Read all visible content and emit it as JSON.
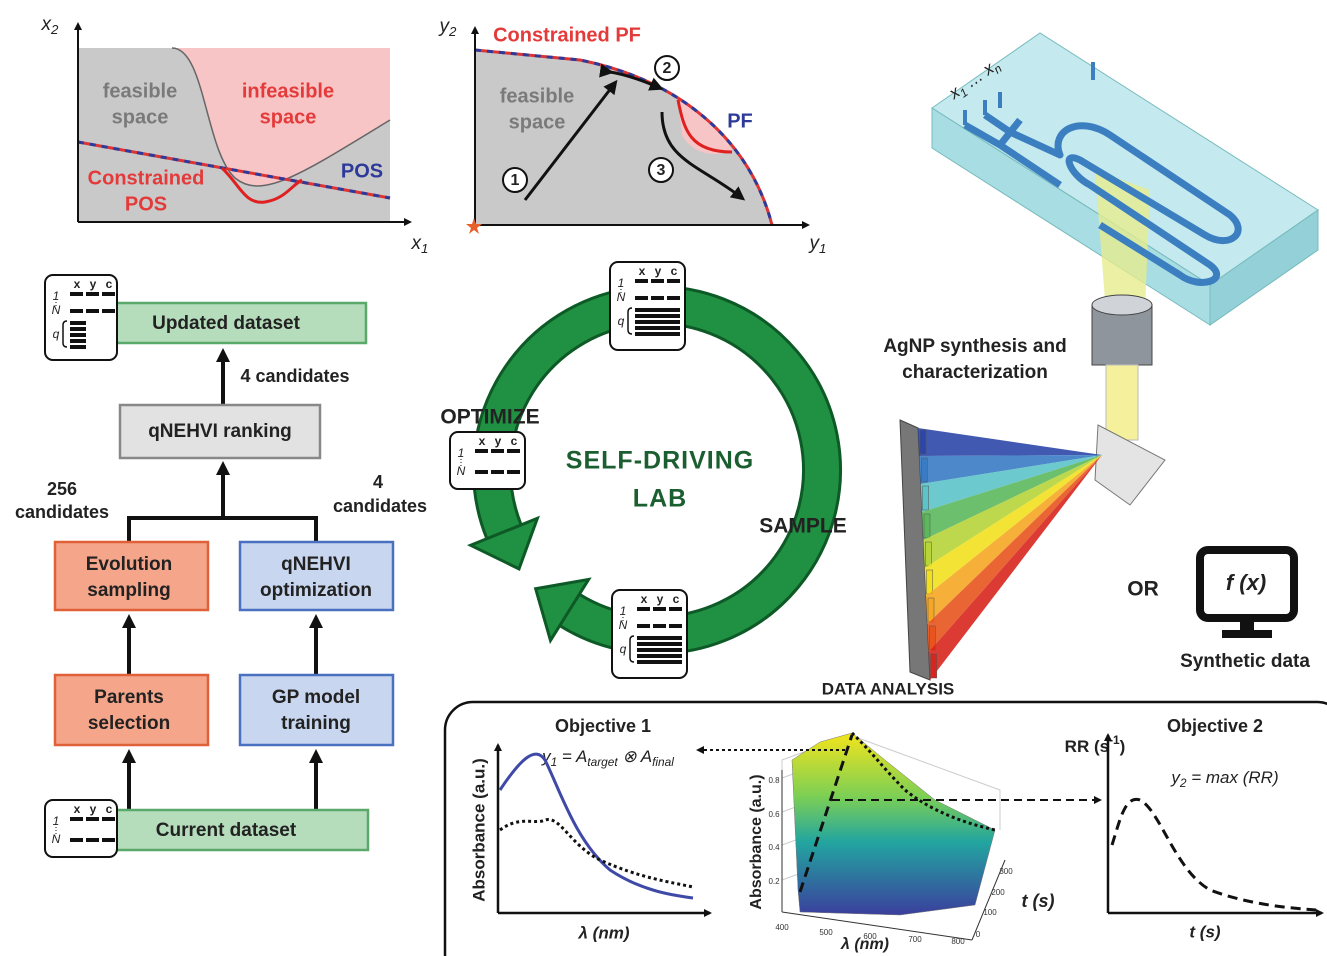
{
  "plot_pos": {
    "y_axis": [
      {
        "t": "x"
      },
      {
        "sub": "2"
      }
    ],
    "x_axis": [
      {
        "t": "x"
      },
      {
        "sub": "1"
      }
    ],
    "feasible": [
      "feasible",
      "space"
    ],
    "infeasible": [
      "infeasible",
      "space"
    ],
    "constrained": [
      "Constrained",
      "POS"
    ],
    "pos": "POS"
  },
  "plot_pf": {
    "y_axis": [
      {
        "t": "y"
      },
      {
        "sub": "2"
      }
    ],
    "x_axis": [
      {
        "t": "y"
      },
      {
        "sub": "1"
      }
    ],
    "constrained": "Constrained PF",
    "pf": "PF",
    "feasible": [
      "feasible",
      "space"
    ],
    "steps": [
      "1",
      "2",
      "3"
    ]
  },
  "flowchart": {
    "updated": "Updated dataset",
    "edge_top": "4 candidates",
    "ranking": "qNEHVI ranking",
    "edge_left": [
      "256",
      "candidates"
    ],
    "edge_right": [
      "4",
      "candidates"
    ],
    "evolution": [
      "Evolution",
      "sampling"
    ],
    "optimization": [
      "qNEHVI",
      "optimization"
    ],
    "parents": [
      "Parents",
      "selection"
    ],
    "gp": [
      "GP model",
      "training"
    ],
    "current": "Current dataset"
  },
  "cycle": {
    "optimize": "OPTIMIZE",
    "title": [
      "SELF-DRIVING",
      "LAB"
    ],
    "sample": "SAMPLE"
  },
  "icons": [
    {
      "cols": [
        "x",
        "y",
        "c"
      ],
      "rows": [
        "1",
        "N",
        "q"
      ]
    },
    {
      "cols": [
        "x",
        "y",
        "c"
      ],
      "rows": [
        "1",
        "N"
      ]
    },
    {
      "cols": [
        "x",
        "y",
        "c"
      ],
      "rows": [
        "1",
        "N",
        "q"
      ]
    },
    {
      "cols": [
        "x",
        "y",
        "c"
      ],
      "rows": [
        "1",
        "N"
      ]
    },
    {
      "cols": [
        "x",
        "y",
        "c"
      ],
      "rows": [
        "1",
        "N",
        "q"
      ]
    }
  ],
  "device": {
    "inputs": [
      {
        "t": "x"
      },
      {
        "sub": "1"
      },
      {
        "t": " … x"
      },
      {
        "sub": "n"
      }
    ],
    "caption": [
      "AgNP synthesis and",
      "characterization"
    ],
    "or": "OR",
    "function": "f (x)",
    "synthetic": "Synthetic data"
  },
  "analysis": {
    "title": "DATA ANALYSIS",
    "objective1": "Objective 1",
    "formula1": [
      {
        "t": "y"
      },
      {
        "sub": "1"
      },
      {
        "t": " = "
      },
      {
        "t": "A"
      },
      {
        "sub": "target"
      },
      {
        "t": " ⊗ "
      },
      {
        "t": "A"
      },
      {
        "sub": "final"
      }
    ],
    "ylabel1": "Absorbance (a.u.)",
    "xlabel1": "λ (nm)",
    "surface": {
      "zticks": [
        "0.2",
        "0.4",
        "0.6",
        "0.8"
      ],
      "xticks": [
        "400",
        "500",
        "600",
        "700",
        "800"
      ],
      "tticks": [
        "0",
        "100",
        "200",
        "300"
      ],
      "zlabel": "Absorbance (a.u.)",
      "xlabel": "λ (nm)",
      "tlabel": "t (s)"
    },
    "objective2": "Objective 2",
    "ylabel2": [
      {
        "t": "RR (s"
      },
      {
        "sup": "-1"
      },
      {
        "t": ")"
      }
    ],
    "formula2": [
      {
        "t": "y"
      },
      {
        "sub": "2"
      },
      {
        "t": " = max (RR)"
      }
    ],
    "xlabel2": "t (s)"
  }
}
